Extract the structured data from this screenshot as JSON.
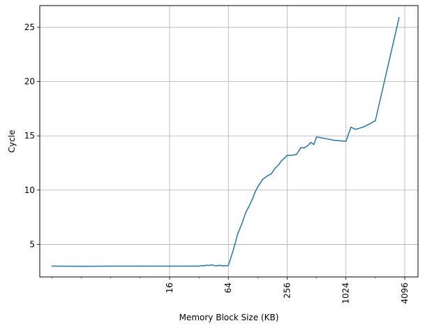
{
  "chart_data": {
    "type": "line",
    "title": "",
    "xlabel": "Memory Block Size (KB)",
    "ylabel": "Cycle",
    "x_scale": "log2",
    "xlim": [
      0.75,
      5600
    ],
    "ylim": [
      2.0,
      27.0
    ],
    "grid": true,
    "x_ticks": [
      16,
      64,
      256,
      1024,
      4096
    ],
    "x_tick_labels": [
      "16",
      "64",
      "256",
      "1024",
      "4096"
    ],
    "y_ticks": [
      5,
      10,
      15,
      20,
      25
    ],
    "y_tick_labels": [
      "5",
      "10",
      "15",
      "20",
      "25"
    ],
    "line_color": "#1f77b4",
    "series": [
      {
        "x": [
          1,
          2,
          4,
          8,
          16,
          32,
          34,
          36,
          38,
          40,
          44,
          48,
          52,
          56,
          64,
          72,
          80,
          88,
          96,
          104,
          112,
          120,
          128,
          144,
          160,
          176,
          192,
          208,
          224,
          256,
          288,
          320,
          352,
          384,
          416,
          448,
          480,
          512,
          768,
          1024,
          1152,
          1280,
          1536,
          1792,
          2048,
          3584
        ],
        "y": [
          3.0,
          2.98,
          3.0,
          3.0,
          3.0,
          3.0,
          3.05,
          3.03,
          3.08,
          3.06,
          3.1,
          3.02,
          3.07,
          3.02,
          3.05,
          4.5,
          6.0,
          6.9,
          7.9,
          8.5,
          9.1,
          9.8,
          10.3,
          11.0,
          11.3,
          11.5,
          12.0,
          12.3,
          12.7,
          13.2,
          13.2,
          13.3,
          13.9,
          13.9,
          14.1,
          14.4,
          14.2,
          14.9,
          14.6,
          14.5,
          15.8,
          15.6,
          15.8,
          16.1,
          16.4,
          25.9
        ]
      }
    ]
  }
}
